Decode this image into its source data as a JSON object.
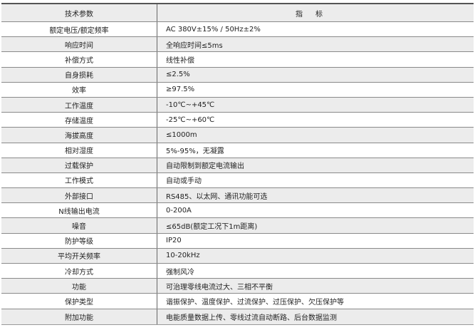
{
  "header": {
    "param": "技术参数",
    "spec": "指标"
  },
  "rows": [
    {
      "param": "额定电压/额定频率",
      "spec": "AC 380V±15% / 50Hz±2%"
    },
    {
      "param": "响应时间",
      "spec": "全响应时间≤5ms"
    },
    {
      "param": "补偿方式",
      "spec": "线性补偿"
    },
    {
      "param": "自身损耗",
      "spec": "≤2.5%"
    },
    {
      "param": "效率",
      "spec": "≥97.5%"
    },
    {
      "param": "工作温度",
      "spec": "-10℃~+45℃"
    },
    {
      "param": "存储温度",
      "spec": "-25℃~+60℃"
    },
    {
      "param": "海拔高度",
      "spec": "≤1000m"
    },
    {
      "param": "相对湿度",
      "spec": "5%-95%，无凝露"
    },
    {
      "param": "过载保护",
      "spec": "自动限制到额定电流输出"
    },
    {
      "param": "工作模式",
      "spec": "自动或手动"
    },
    {
      "param": "外部接口",
      "spec": "RS485、以太网、通讯功能可选"
    },
    {
      "param": "N线输出电流",
      "spec": "0-200A"
    },
    {
      "param": "噪音",
      "spec": "≤65dB(额定工况下1m距离)"
    },
    {
      "param": "防护等级",
      "spec": "IP20"
    },
    {
      "param": "平均开关频率",
      "spec": "10-20kHz"
    },
    {
      "param": "冷却方式",
      "spec": "强制风冷"
    },
    {
      "param": "功能",
      "spec": "可治理零线电流过大、三相不平衡"
    },
    {
      "param": "保护类型",
      "spec": "谐振保护、温度保护、过流保护、过压保护、欠压保护等"
    },
    {
      "param": "附加功能",
      "spec": "电能质量数据上传、零线过流自动断路、后台数据监测"
    }
  ]
}
